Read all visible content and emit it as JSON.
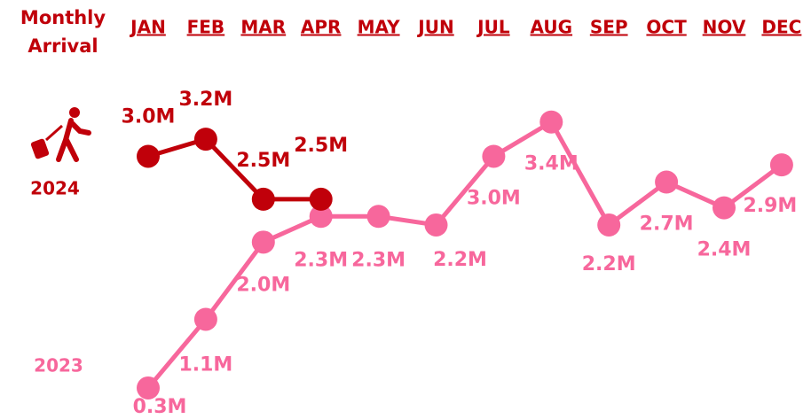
{
  "chart_data": {
    "type": "line",
    "title": "Monthly Arrival",
    "categories": [
      "JAN",
      "FEB",
      "MAR",
      "APR",
      "MAY",
      "JUN",
      "JUL",
      "AUG",
      "SEP",
      "OCT",
      "NOV",
      "DEC"
    ],
    "ylim": [
      0,
      3.8
    ],
    "series": [
      {
        "name": "2024",
        "color": "#c0000a",
        "values": [
          3.0,
          3.2,
          2.5,
          2.5,
          null,
          null,
          null,
          null,
          null,
          null,
          null,
          null
        ],
        "value_labels": [
          "3.0M",
          "3.2M",
          "2.5M",
          "2.5M",
          null,
          null,
          null,
          null,
          null,
          null,
          null,
          null
        ]
      },
      {
        "name": "2023",
        "color": "#f7679c",
        "values": [
          0.3,
          1.1,
          2.0,
          2.3,
          2.3,
          2.2,
          3.0,
          3.4,
          2.2,
          2.7,
          2.4,
          2.9
        ],
        "value_labels": [
          "0.3M",
          "1.1M",
          "2.0M",
          "2.3M",
          "2.3M",
          "2.2M",
          "3.0M",
          "3.4M",
          "2.2M",
          "2.7M",
          "2.4M",
          "2.9M"
        ]
      }
    ]
  }
}
